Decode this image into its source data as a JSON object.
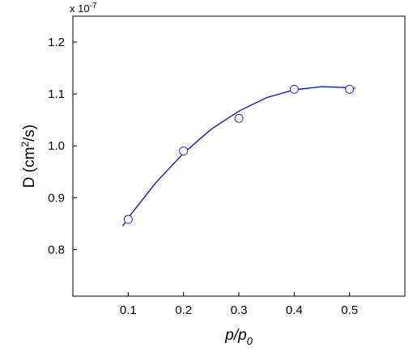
{
  "chart_data": {
    "type": "scatter",
    "xlabel_main": "p/p",
    "xlabel_sub": "0",
    "ylabel_pre": "D (cm",
    "ylabel_sup": "2",
    "ylabel_post": "/s)",
    "y_multiplier_base": "x 10",
    "y_multiplier_exp": "-7",
    "xlim": [
      0.0,
      0.6
    ],
    "ylim": [
      0.71,
      1.25
    ],
    "x_ticks": [
      0.1,
      0.2,
      0.3,
      0.4,
      0.5
    ],
    "x_tick_labels": [
      "0.1",
      "0.2",
      "0.3",
      "0.4",
      "0.5"
    ],
    "y_ticks": [
      0.8,
      0.9,
      1.0,
      1.1,
      1.2
    ],
    "y_tick_labels": [
      "0.8",
      "0.9",
      "1.0",
      "1.1",
      "1.2"
    ],
    "series": [
      {
        "kind": "points",
        "marker": "open-circle",
        "color": "#2b2bc8",
        "x": [
          0.1,
          0.2,
          0.3,
          0.4,
          0.5
        ],
        "y": [
          0.858,
          0.99,
          1.053,
          1.109,
          1.109
        ]
      },
      {
        "kind": "fit-line",
        "color": "#0a1fa8",
        "x": [
          0.09,
          0.1,
          0.15,
          0.2,
          0.25,
          0.3,
          0.35,
          0.4,
          0.45,
          0.5,
          0.51
        ],
        "y": [
          0.845,
          0.861,
          0.929,
          0.986,
          1.032,
          1.067,
          1.093,
          1.108,
          1.114,
          1.112,
          1.111
        ]
      }
    ],
    "grid": false,
    "legend": "none"
  }
}
